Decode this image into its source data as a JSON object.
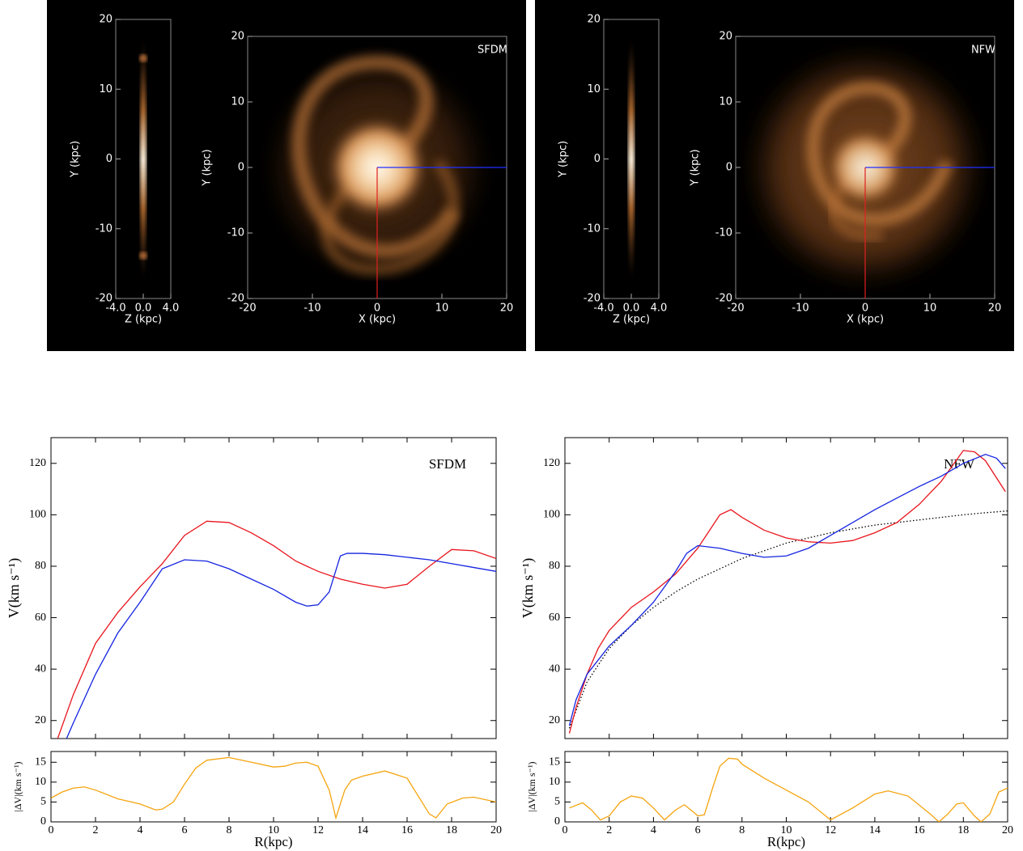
{
  "images": [
    {
      "label": "SFDM",
      "edge_on": {
        "xlabel": "Z (kpc)",
        "ylabel": "Y (kpc)",
        "xlim": [
          -4,
          4
        ],
        "ylim": [
          -20,
          20
        ],
        "xticks": [
          {
            "value": -4,
            "label": "-4.0"
          },
          {
            "value": 0,
            "label": "0.0"
          },
          {
            "value": 4,
            "label": "4.0"
          }
        ],
        "yticks": [
          -20,
          -10,
          0,
          10,
          20
        ]
      },
      "face_on": {
        "xlabel": "X (kpc)",
        "ylabel": "Y (kpc)",
        "xlim": [
          -20,
          20
        ],
        "ylim": [
          -20,
          20
        ],
        "xticks": [
          -20,
          -10,
          0,
          10,
          20
        ],
        "yticks": [
          -20,
          -10,
          0,
          10,
          20
        ]
      }
    },
    {
      "label": "NFW",
      "edge_on": {
        "xlabel": "Z (kpc)",
        "ylabel": "Y (kpc)",
        "xlim": [
          -4,
          4
        ],
        "ylim": [
          -20,
          20
        ],
        "xticks": [
          {
            "value": -4,
            "label": "-4.0"
          },
          {
            "value": 0,
            "label": "0.0"
          },
          {
            "value": 4,
            "label": "4.0"
          }
        ],
        "yticks": [
          -20,
          -10,
          0,
          10,
          20
        ]
      },
      "face_on": {
        "xlabel": "X (kpc)",
        "ylabel": "Y (kpc)",
        "xlim": [
          -20,
          20
        ],
        "ylim": [
          -20,
          20
        ],
        "xticks": [
          -20,
          -10,
          0,
          10,
          20
        ],
        "yticks": [
          -20,
          -10,
          0,
          10,
          20
        ]
      }
    }
  ],
  "chart_data": [
    {
      "type": "line",
      "annotation": "SFDM",
      "ylabel": "V(km s⁻¹)",
      "xlim": [
        0,
        20
      ],
      "ylim": [
        13,
        130
      ],
      "yticks": [
        20,
        40,
        60,
        80,
        100,
        120
      ],
      "series": [
        {
          "color": "#e8141c",
          "x": [
            0.3,
            1,
            2,
            3,
            4,
            5,
            6,
            7,
            8,
            9,
            10,
            11,
            12,
            13,
            14,
            15,
            16,
            17,
            18,
            19,
            20
          ],
          "values": [
            13,
            30,
            50,
            62,
            72,
            81,
            92,
            97.5,
            97,
            93,
            88,
            82,
            78,
            75,
            73,
            71.5,
            73,
            80,
            86.5,
            86,
            83
          ]
        },
        {
          "color": "#1424e0",
          "x": [
            0.7,
            1,
            2,
            3,
            4,
            5,
            6,
            7,
            8,
            9,
            10,
            11,
            11.5,
            12,
            12.5,
            13,
            13.3,
            14,
            15,
            16,
            17,
            18,
            19,
            20
          ],
          "values": [
            13,
            19,
            38,
            54,
            66,
            79,
            82.5,
            82,
            79,
            75,
            71,
            66,
            64.5,
            65,
            70,
            84,
            85,
            85,
            84.5,
            83.5,
            82.5,
            81,
            79.5,
            78
          ]
        }
      ]
    },
    {
      "type": "line",
      "xlabel": "R(kpc)",
      "ylabel": "|ΔV|(km s⁻¹)",
      "xlim": [
        0,
        20
      ],
      "ylim": [
        0,
        17.7
      ],
      "xticks": [
        0,
        2,
        4,
        6,
        8,
        10,
        12,
        14,
        16,
        18,
        20
      ],
      "yticks": [
        0,
        5,
        10,
        15
      ],
      "series": [
        {
          "color": "#f5a40f",
          "x": [
            0,
            0.5,
            1,
            1.5,
            2,
            3,
            4,
            4.7,
            5,
            5.5,
            6,
            6.5,
            7,
            8,
            9,
            10,
            10.5,
            11,
            11.5,
            12,
            12.5,
            12.8,
            13.2,
            13.5,
            14,
            15,
            16,
            17,
            17.3,
            17.8,
            18.5,
            19,
            20
          ],
          "values": [
            6,
            7.5,
            8.5,
            8.8,
            8,
            5.8,
            4.5,
            3,
            3.2,
            5,
            9.5,
            13.5,
            15.5,
            16.2,
            15,
            13.8,
            14,
            14.8,
            15,
            14,
            8,
            1,
            8,
            10.5,
            11.5,
            12.8,
            11,
            2,
            1,
            4.5,
            6,
            6.2,
            5
          ]
        }
      ]
    },
    {
      "type": "line",
      "annotation": "NFW",
      "ylabel": "V(km s⁻¹)",
      "xlim": [
        0,
        20
      ],
      "ylim": [
        13,
        130
      ],
      "yticks": [
        20,
        40,
        60,
        80,
        100,
        120
      ],
      "series": [
        {
          "color": "#000000",
          "dotted": true,
          "x": [
            0.2,
            1,
            2,
            3,
            4,
            5,
            6,
            7,
            8,
            9,
            10,
            11,
            12,
            13,
            14,
            15,
            16,
            17,
            18,
            19,
            20
          ],
          "values": [
            17,
            35,
            48,
            57,
            64,
            70,
            75,
            79,
            83,
            86,
            89,
            91,
            93,
            94.5,
            96,
            97,
            98,
            99,
            100,
            100.8,
            101.5
          ]
        },
        {
          "color": "#e8141c",
          "x": [
            0.2,
            0.5,
            1,
            1.5,
            2,
            3,
            4,
            5,
            6,
            7,
            7.5,
            8,
            9,
            10,
            11,
            12,
            13,
            14,
            15,
            16,
            17,
            18,
            18.5,
            19,
            19.9
          ],
          "values": [
            15,
            25,
            38,
            48,
            55,
            64,
            70,
            77,
            87,
            100,
            102,
            99,
            94,
            91,
            89.5,
            89,
            90,
            93,
            97,
            104,
            113,
            125,
            124.5,
            121,
            109
          ]
        },
        {
          "color": "#1424e0",
          "x": [
            0.2,
            0.5,
            1,
            2,
            3,
            4,
            5,
            5.5,
            6,
            7,
            8,
            9,
            10,
            11,
            12,
            13,
            14,
            15,
            16,
            17,
            18,
            19,
            19.5,
            19.9
          ],
          "values": [
            18,
            28,
            38,
            49,
            57,
            66,
            78,
            85,
            88,
            87,
            85,
            83.5,
            84,
            87,
            92,
            97,
            102,
            106.5,
            111,
            115,
            120,
            123.5,
            122,
            118
          ]
        }
      ]
    },
    {
      "type": "line",
      "xlabel": "R(kpc)",
      "ylabel": "|ΔV|(km s⁻¹)",
      "xlim": [
        0,
        20
      ],
      "ylim": [
        0,
        17.7
      ],
      "xticks": [
        0,
        2,
        4,
        6,
        8,
        10,
        12,
        14,
        16,
        18,
        20
      ],
      "yticks": [
        0,
        5,
        10,
        15
      ],
      "series": [
        {
          "color": "#f5a40f",
          "x": [
            0.2,
            0.8,
            1.2,
            1.6,
            2,
            2.5,
            3,
            3.5,
            4,
            4.5,
            5,
            5.4,
            5.8,
            6,
            6.3,
            6.7,
            7,
            7.4,
            7.8,
            8,
            9,
            10,
            11,
            12,
            13,
            14,
            14.6,
            15.5,
            16.5,
            16.9,
            17.3,
            17.7,
            18,
            18.5,
            18.8,
            19.2,
            19.6,
            20
          ],
          "values": [
            3.5,
            4.8,
            3,
            0.5,
            1.5,
            5,
            6.5,
            6,
            3.5,
            0.5,
            3,
            4.3,
            2.5,
            1.5,
            1.8,
            9,
            14,
            16,
            15.8,
            14.5,
            11,
            8,
            5,
            0.5,
            3.5,
            7,
            7.8,
            6.5,
            2,
            0,
            2,
            4.5,
            4.8,
            1.5,
            0,
            2,
            7.5,
            8.5
          ]
        }
      ]
    }
  ]
}
